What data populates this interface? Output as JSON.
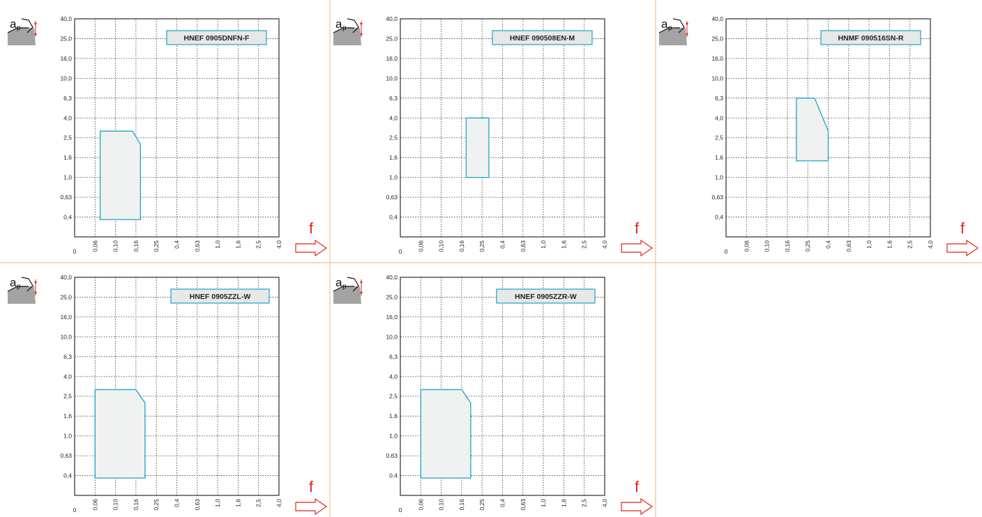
{
  "colors": {
    "grid": "#333333",
    "frame": "#000000",
    "region_stroke": "#1aa3c9",
    "region_fill": "#f0f2f1",
    "label_fill": "#e7e8e8",
    "label_stroke": "#1aa3c9",
    "divider": "#f2b36b",
    "arrow": "#e2231a",
    "icon_body": "#a3a3a3"
  },
  "icons": {
    "depth": "depth-of-cut-icon",
    "feed": "feed-arrow-icon"
  },
  "y_symbol_main": "a",
  "y_symbol_sub": "p",
  "x_symbol": "f",
  "chart_data": [
    {
      "type": "area",
      "title": "HNEF 0905DNFN-F",
      "xlabel": "f",
      "ylabel": "ap",
      "x_ticks": [
        "0",
        "0,06",
        "0,10",
        "0,16",
        "0,25",
        "0,4",
        "0,63",
        "1,0",
        "1,6",
        "2,5",
        "4,0"
      ],
      "y_ticks": [
        "0,4",
        "0,63",
        "1,0",
        "1,6",
        "2,5",
        "4,0",
        "6,3",
        "10,0",
        "16,0",
        "25,0",
        "40,0"
      ],
      "x_scale": "tick-index",
      "y_scale": "tick-index",
      "grid": true,
      "region": {
        "x": [
          0.07,
          0.07,
          0.15,
          0.18,
          0.18
        ],
        "y": [
          0.35,
          3.0,
          3.0,
          2.2,
          0.35
        ]
      }
    },
    {
      "type": "area",
      "title": "HNEF 090508EN-M",
      "xlabel": "f",
      "ylabel": "ap",
      "x_ticks": [
        "0",
        "0,06",
        "0,10",
        "0,16",
        "0,25",
        "0,4",
        "0,63",
        "1,0",
        "1,6",
        "2,5",
        "4,0"
      ],
      "y_ticks": [
        "0,4",
        "0,63",
        "1,0",
        "1,6",
        "2,5",
        "4,0",
        "6,3",
        "10,0",
        "16,0",
        "25,0",
        "40,0"
      ],
      "x_scale": "tick-index",
      "y_scale": "tick-index",
      "grid": true,
      "region": {
        "x": [
          0.18,
          0.18,
          0.3,
          0.3
        ],
        "y": [
          1.0,
          4.0,
          4.0,
          1.0
        ]
      }
    },
    {
      "type": "area",
      "title": "HNMF 090516SN-R",
      "xlabel": "f",
      "ylabel": "ap",
      "x_ticks": [
        "0",
        "0,06",
        "0,10",
        "0,16",
        "0,25",
        "0,4",
        "0,63",
        "1,0",
        "1,6",
        "2,5",
        "4,0"
      ],
      "y_ticks": [
        "0,4",
        "0,63",
        "1,0",
        "1,6",
        "2,5",
        "4,0",
        "6,3",
        "10,0",
        "16,0",
        "25,0",
        "40,0"
      ],
      "x_scale": "tick-index",
      "y_scale": "tick-index",
      "grid": true,
      "region": {
        "x": [
          0.2,
          0.2,
          0.3,
          0.4,
          0.4
        ],
        "y": [
          1.5,
          6.3,
          6.3,
          3.0,
          1.5
        ]
      }
    },
    {
      "type": "area",
      "title": "HNEF 0905ZZL-W",
      "xlabel": "f",
      "ylabel": "ap",
      "x_ticks": [
        "0",
        "0,06",
        "0,10",
        "0,16",
        "0,25",
        "0,4",
        "0,63",
        "1,0",
        "1,6",
        "2,5",
        "4,0"
      ],
      "y_ticks": [
        "0,4",
        "0,63",
        "1,0",
        "1,6",
        "2,5",
        "4,0",
        "6,3",
        "10,0",
        "16,0",
        "25,0",
        "40,0"
      ],
      "x_scale": "tick-index",
      "y_scale": "tick-index",
      "grid": true,
      "region": {
        "x": [
          0.06,
          0.06,
          0.16,
          0.2,
          0.2
        ],
        "y": [
          0.35,
          3.0,
          3.0,
          2.2,
          0.35
        ]
      }
    },
    {
      "type": "area",
      "title": "HNEF 0905ZZR-W",
      "xlabel": "f",
      "ylabel": "ap",
      "x_ticks": [
        "0",
        "0,06",
        "0,10",
        "0,16",
        "0,25",
        "0,4",
        "0,63",
        "1,0",
        "1,6",
        "2,5",
        "4,0"
      ],
      "y_ticks": [
        "0,4",
        "0,63",
        "1,0",
        "1,6",
        "2,5",
        "4,0",
        "6,3",
        "10,0",
        "16,0",
        "25,0",
        "40,0"
      ],
      "x_scale": "tick-index",
      "y_scale": "tick-index",
      "grid": true,
      "region": {
        "x": [
          0.06,
          0.06,
          0.16,
          0.2,
          0.2
        ],
        "y": [
          0.35,
          3.0,
          3.0,
          2.2,
          0.35
        ]
      }
    }
  ]
}
